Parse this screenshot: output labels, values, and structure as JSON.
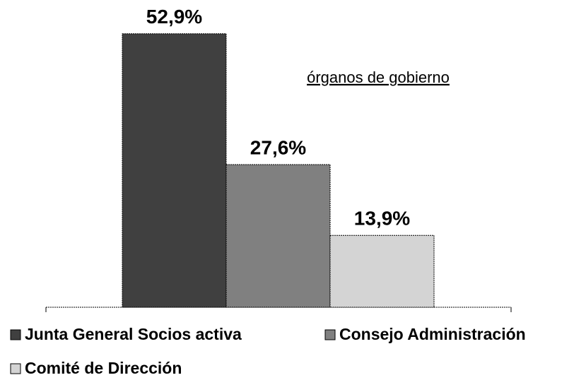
{
  "chart_data": {
    "type": "bar",
    "title": "órganos de gobierno",
    "series": [
      {
        "name": "Junta General Socios activa",
        "color": "#404040",
        "values": [
          52.9
        ],
        "value_labels": [
          "52,9%"
        ]
      },
      {
        "name": "Consejo Administración",
        "color": "#808080",
        "values": [
          27.6
        ],
        "value_labels": [
          "27,6%"
        ]
      },
      {
        "name": "Comité de Dirección",
        "color": "#d4d4d4",
        "values": [
          13.9
        ],
        "value_labels": [
          "13,9%"
        ]
      }
    ],
    "legend": "bottom"
  }
}
